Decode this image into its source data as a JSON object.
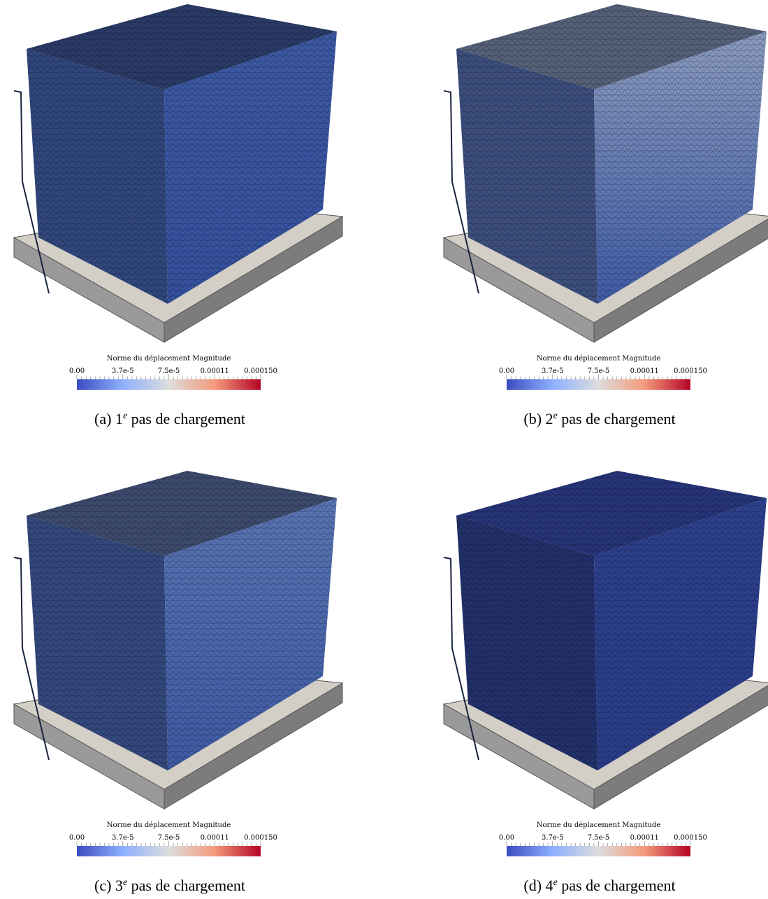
{
  "figure": {
    "panels": [
      {
        "colorbar": {
          "title": "Norme du déplacement Magnitude",
          "ticks": [
            "0.00",
            "3.7e-5",
            "7.5e-5",
            "0.00011",
            "0.000150"
          ]
        },
        "caption": {
          "prefix": "(a) 1",
          "sup": "e",
          "suffix": " pas de chargement"
        }
      },
      {
        "colorbar": {
          "title": "Norme du déplacement Magnitude",
          "ticks": [
            "0.00",
            "3.7e-5",
            "7.5e-5",
            "0.00011",
            "0.000150"
          ]
        },
        "caption": {
          "prefix": "(b) 2",
          "sup": "e",
          "suffix": " pas de chargement"
        }
      },
      {
        "colorbar": {
          "title": "Norme du déplacement Magnitude",
          "ticks": [
            "0.00",
            "3.7e-5",
            "7.5e-5",
            "0.00011",
            "0.000150"
          ]
        },
        "caption": {
          "prefix": "(c) 3",
          "sup": "e",
          "suffix": " pas de chargement"
        }
      },
      {
        "colorbar": {
          "title": "Norme du déplacement Magnitude",
          "ticks": [
            "0.00",
            "3.7e-5",
            "7.5e-5",
            "0.00011",
            "0.000150"
          ]
        },
        "caption": {
          "prefix": "(d) 4",
          "sup": "e",
          "suffix": " pas de chargement"
        }
      }
    ]
  }
}
